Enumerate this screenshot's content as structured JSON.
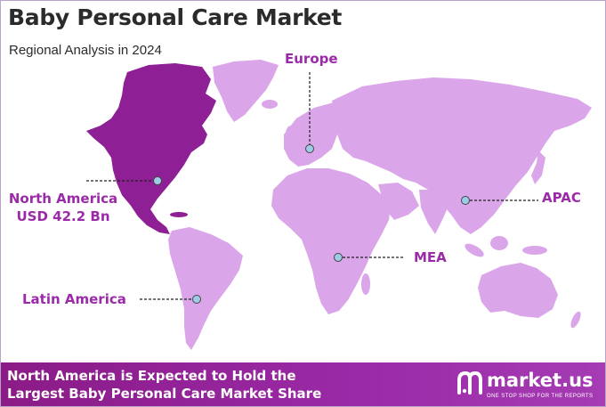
{
  "title": "Baby Personal Care Market",
  "subtitle": "Regional Analysis in 2024",
  "colors": {
    "highlight": "#8e1f95",
    "region": "#dba5ea",
    "accent": "#9b2aa8",
    "marker": "#9ecbe8"
  },
  "regions": {
    "north_america": {
      "name": "North America",
      "value": "USD 42.2 Bn"
    },
    "europe": {
      "name": "Europe"
    },
    "apac": {
      "name": "APAC"
    },
    "mea": {
      "name": "MEA"
    },
    "latin_america": {
      "name": "Latin America"
    }
  },
  "footer": {
    "line1": "North America is Expected to Hold the",
    "line2": "Largest Baby Personal Care Market Share"
  },
  "brand": {
    "name": "market.us",
    "tagline": "ONE STOP SHOP FOR THE REPORTS",
    "logo_icon": "market-us-logo-icon"
  }
}
